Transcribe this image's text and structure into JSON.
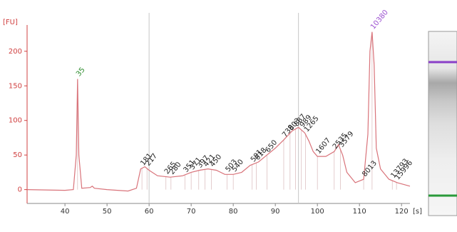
{
  "chart_data": {
    "type": "line",
    "y_axis_label": "[FU]",
    "x_axis_label": "[s]",
    "x": [
      31,
      40,
      42,
      42.7,
      43,
      43.3,
      44,
      46,
      46.5,
      47,
      50,
      55,
      57,
      58,
      59,
      60,
      62,
      65,
      68,
      70,
      72,
      74,
      76,
      78,
      80,
      82,
      84,
      86,
      88,
      90,
      92,
      94,
      95.5,
      97,
      98,
      99,
      100,
      102,
      104,
      105,
      106,
      107,
      109,
      111,
      112,
      112.5,
      113,
      113.5,
      114,
      115,
      117,
      119,
      122
    ],
    "values": [
      0,
      -1,
      0,
      50,
      160,
      50,
      2,
      3,
      5,
      2,
      0,
      -2,
      2,
      30,
      33,
      28,
      20,
      18,
      20,
      25,
      28,
      30,
      28,
      22,
      22,
      25,
      35,
      40,
      50,
      60,
      72,
      85,
      90,
      82,
      70,
      55,
      48,
      48,
      55,
      65,
      50,
      25,
      10,
      15,
      80,
      200,
      228,
      180,
      60,
      30,
      15,
      10,
      5
    ],
    "color": "#d9737a",
    "xlim": [
      31,
      122
    ],
    "ylim": [
      -20,
      238
    ],
    "xticks": [
      40,
      50,
      60,
      70,
      80,
      90,
      100,
      110,
      120
    ],
    "yticks": [
      0,
      50,
      100,
      150,
      200
    ],
    "markers": [
      60,
      95.5
    ],
    "peaks": [
      {
        "label": "35",
        "x": 43,
        "color": "#2a8a2a"
      },
      {
        "label": "181",
        "x": 58.3,
        "color": "#222222"
      },
      {
        "label": "217",
        "x": 59.5,
        "color": "#222222"
      },
      {
        "label": "265",
        "x": 64,
        "color": "#222222"
      },
      {
        "label": "280",
        "x": 65.2,
        "color": "#222222"
      },
      {
        "label": "351",
        "x": 68.5,
        "color": "#222222"
      },
      {
        "label": "371",
        "x": 70,
        "color": "#222222"
      },
      {
        "label": "397",
        "x": 71.8,
        "color": "#222222"
      },
      {
        "label": "421",
        "x": 73.3,
        "color": "#222222"
      },
      {
        "label": "450",
        "x": 74.8,
        "color": "#222222"
      },
      {
        "label": "503",
        "x": 78.5,
        "color": "#222222"
      },
      {
        "label": "540",
        "x": 80,
        "color": "#222222"
      },
      {
        "label": "591",
        "x": 84.5,
        "color": "#222222"
      },
      {
        "label": "618",
        "x": 85.5,
        "color": "#222222"
      },
      {
        "label": "650",
        "x": 88,
        "color": "#222222"
      },
      {
        "label": "738",
        "x": 92,
        "color": "#222222"
      },
      {
        "label": "803",
        "x": 93.5,
        "color": "#222222"
      },
      {
        "label": "887",
        "x": 94.8,
        "color": "#222222"
      },
      {
        "label": "989",
        "x": 96.2,
        "color": "#222222"
      },
      {
        "label": "1265",
        "x": 97.2,
        "color": "#222222"
      },
      {
        "label": "1607",
        "x": 100,
        "color": "#222222"
      },
      {
        "label": "2535",
        "x": 104,
        "color": "#222222"
      },
      {
        "label": "3579",
        "x": 105.5,
        "color": "#222222"
      },
      {
        "label": "8013",
        "x": 111,
        "color": "#222222"
      },
      {
        "label": "10380",
        "x": 113,
        "color": "#9b4fd0"
      },
      {
        "label": "13793",
        "x": 117.8,
        "color": "#222222"
      },
      {
        "label": "15996",
        "x": 118.8,
        "color": "#222222"
      }
    ]
  }
}
